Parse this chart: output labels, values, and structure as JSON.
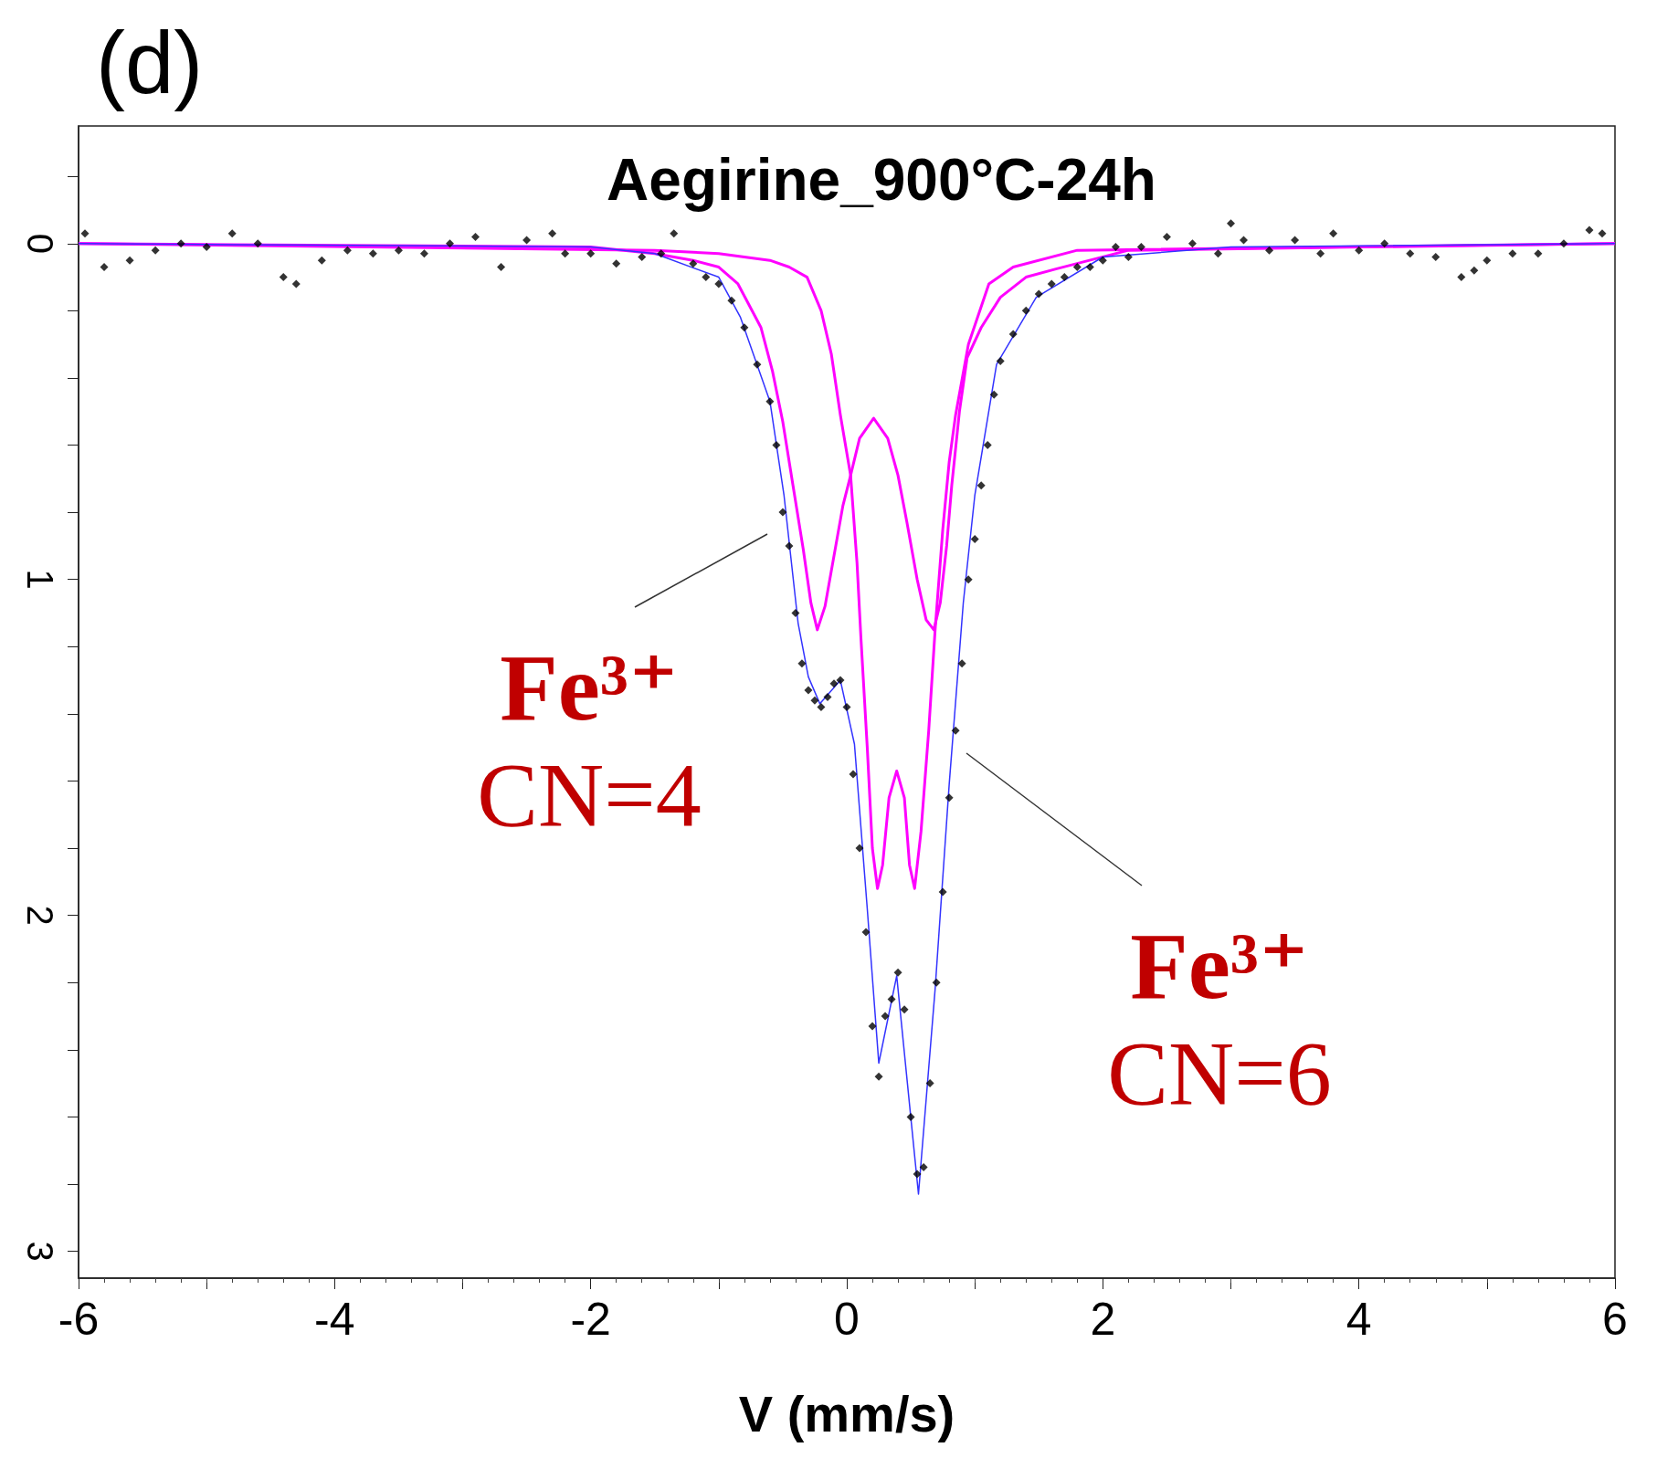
{
  "chart_data": {
    "type": "scatter",
    "title": "Aegirine_900°C-24h",
    "xlabel": "V (mm/s)",
    "xlim": [
      -6,
      6
    ],
    "xticks": [
      -6,
      {
        "value": -5,
        "label": null
      },
      -4,
      {
        "value": -3,
        "label": null
      },
      -2,
      {
        "value": -1,
        "label": null
      },
      0,
      {
        "value": 1,
        "label": null
      },
      2,
      {
        "value": 3,
        "label": null
      },
      4,
      {
        "value": 5,
        "label": null
      },
      6
    ],
    "ylim": [
      3.08,
      -0.35
    ],
    "yticks": [
      {
        "value": -0.2,
        "label": null
      },
      0,
      {
        "value": 0.2,
        "label": null
      },
      {
        "value": 0.4,
        "label": null
      },
      {
        "value": 0.6,
        "label": null
      },
      {
        "value": 0.8,
        "label": null
      },
      1,
      {
        "value": 1.2,
        "label": null
      },
      {
        "value": 1.4,
        "label": null
      },
      {
        "value": 1.6,
        "label": null
      },
      {
        "value": 1.8,
        "label": null
      },
      2,
      {
        "value": 2.2,
        "label": null
      },
      {
        "value": 2.4,
        "label": null
      },
      {
        "value": 2.6,
        "label": null
      },
      {
        "value": 2.8,
        "label": null
      },
      3
    ],
    "grid": false,
    "annotations": [
      "(d)",
      "Fe³⁺\nCN=4",
      "Fe³⁺\nCN=6"
    ],
    "series": [
      {
        "marker": "diamond",
        "color": "#000000",
        "x": [
          -5.95,
          -5.8,
          -5.6,
          -5.4,
          -5.2,
          -5.0,
          -4.8,
          -4.6,
          -4.4,
          -4.3,
          -4.1,
          -3.9,
          -3.7,
          -3.5,
          -3.3,
          -3.1,
          -2.9,
          -2.7,
          -2.5,
          -2.3,
          -2.2,
          -2.0,
          -1.8,
          -1.6,
          -1.45,
          -1.35,
          -1.2,
          -1.1,
          -1.0,
          -0.9,
          -0.8,
          -0.7,
          -0.6,
          -0.55,
          -0.5,
          -0.45,
          -0.4,
          -0.35,
          -0.3,
          -0.25,
          -0.2,
          -0.15,
          -0.1,
          -0.05,
          0.0,
          0.05,
          0.1,
          0.15,
          0.2,
          0.25,
          0.3,
          0.35,
          0.4,
          0.45,
          0.5,
          0.55,
          0.6,
          0.65,
          0.7,
          0.75,
          0.8,
          0.85,
          0.9,
          0.95,
          1.0,
          1.05,
          1.1,
          1.15,
          1.2,
          1.3,
          1.4,
          1.5,
          1.6,
          1.7,
          1.8,
          1.9,
          2.0,
          2.1,
          2.2,
          2.3,
          2.5,
          2.7,
          2.9,
          3.0,
          3.1,
          3.3,
          3.5,
          3.7,
          3.8,
          4.0,
          4.2,
          4.4,
          4.6,
          4.8,
          4.9,
          5.0,
          5.2,
          5.4,
          5.6,
          5.8,
          5.9
        ],
        "values": [
          -0.03,
          0.07,
          0.05,
          0.02,
          0.0,
          0.01,
          -0.03,
          0.0,
          0.1,
          0.12,
          0.05,
          0.02,
          0.03,
          0.02,
          0.03,
          0.0,
          -0.02,
          0.07,
          -0.01,
          -0.03,
          0.03,
          0.03,
          0.06,
          0.04,
          0.03,
          -0.03,
          0.06,
          0.1,
          0.12,
          0.17,
          0.25,
          0.36,
          0.47,
          0.6,
          0.8,
          0.9,
          1.1,
          1.25,
          1.33,
          1.36,
          1.38,
          1.35,
          1.31,
          1.3,
          1.38,
          1.58,
          1.8,
          2.05,
          2.33,
          2.48,
          2.3,
          2.25,
          2.17,
          2.28,
          2.6,
          2.77,
          2.75,
          2.5,
          2.2,
          1.93,
          1.65,
          1.45,
          1.25,
          1.0,
          0.88,
          0.72,
          0.6,
          0.45,
          0.35,
          0.27,
          0.2,
          0.15,
          0.12,
          0.1,
          0.07,
          0.07,
          0.05,
          0.01,
          0.04,
          0.01,
          -0.02,
          0.0,
          0.03,
          -0.06,
          -0.01,
          0.02,
          -0.01,
          0.03,
          -0.03,
          0.02,
          0.0,
          0.03,
          0.04,
          0.1,
          0.08,
          0.05,
          0.03,
          0.03,
          0.0,
          -0.04,
          -0.03
        ]
      },
      {
        "type": "line",
        "color": "#ff00ff",
        "x": [
          -6,
          -2,
          -1.5,
          -1.2,
          -1.0,
          -0.85,
          -0.67,
          -0.58,
          -0.5,
          -0.42,
          -0.34,
          -0.28,
          -0.23,
          -0.17,
          -0.1,
          -0.03,
          0.03,
          0.1,
          0.21,
          0.32,
          0.4,
          0.47,
          0.55,
          0.62,
          0.68,
          0.73,
          0.78,
          0.82,
          0.88,
          0.94,
          1.05,
          1.2,
          1.4,
          1.64,
          2.2,
          6
        ],
        "values": [
          0,
          0.01,
          0.03,
          0.05,
          0.07,
          0.12,
          0.25,
          0.38,
          0.53,
          0.72,
          0.91,
          1.07,
          1.15,
          1.08,
          0.93,
          0.78,
          0.69,
          0.58,
          0.52,
          0.58,
          0.69,
          0.83,
          1.0,
          1.12,
          1.15,
          1.07,
          0.9,
          0.72,
          0.5,
          0.34,
          0.25,
          0.16,
          0.1,
          0.075,
          0.02,
          0
        ]
      },
      {
        "type": "line",
        "color": "#ff00ff",
        "x": [
          -6,
          -1.5,
          -1,
          -0.6,
          -0.45,
          -0.31,
          -0.2,
          -0.12,
          -0.05,
          0.03,
          0.08,
          0.11,
          0.16,
          0.2,
          0.24,
          0.28,
          0.33,
          0.39,
          0.45,
          0.49,
          0.53,
          0.58,
          0.64,
          0.69,
          0.75,
          0.8,
          0.85,
          0.95,
          1.11,
          1.3,
          1.8,
          6
        ],
        "values": [
          0,
          0.02,
          0.03,
          0.05,
          0.07,
          0.1,
          0.2,
          0.33,
          0.51,
          0.69,
          0.95,
          1.17,
          1.5,
          1.8,
          1.92,
          1.85,
          1.65,
          1.57,
          1.65,
          1.85,
          1.92,
          1.75,
          1.45,
          1.15,
          0.85,
          0.65,
          0.51,
          0.3,
          0.12,
          0.07,
          0.02,
          0
        ]
      },
      {
        "type": "line",
        "color": "#3333ff",
        "x": [
          -6,
          -2,
          -1.5,
          -1,
          -0.83,
          -0.6,
          -0.49,
          -0.38,
          -0.3,
          -0.21,
          -0.05,
          0.06,
          0.16,
          0.25,
          0.39,
          0.56,
          0.69,
          0.8,
          0.91,
          1.0,
          1.17,
          1.48,
          2.0,
          3.0,
          6
        ],
        "values": [
          0,
          0.01,
          0.03,
          0.1,
          0.22,
          0.47,
          0.75,
          1.13,
          1.29,
          1.37,
          1.3,
          1.49,
          1.98,
          2.44,
          2.18,
          2.83,
          2.22,
          1.61,
          1.07,
          0.75,
          0.36,
          0.16,
          0.04,
          0.01,
          0
        ]
      }
    ]
  }
}
